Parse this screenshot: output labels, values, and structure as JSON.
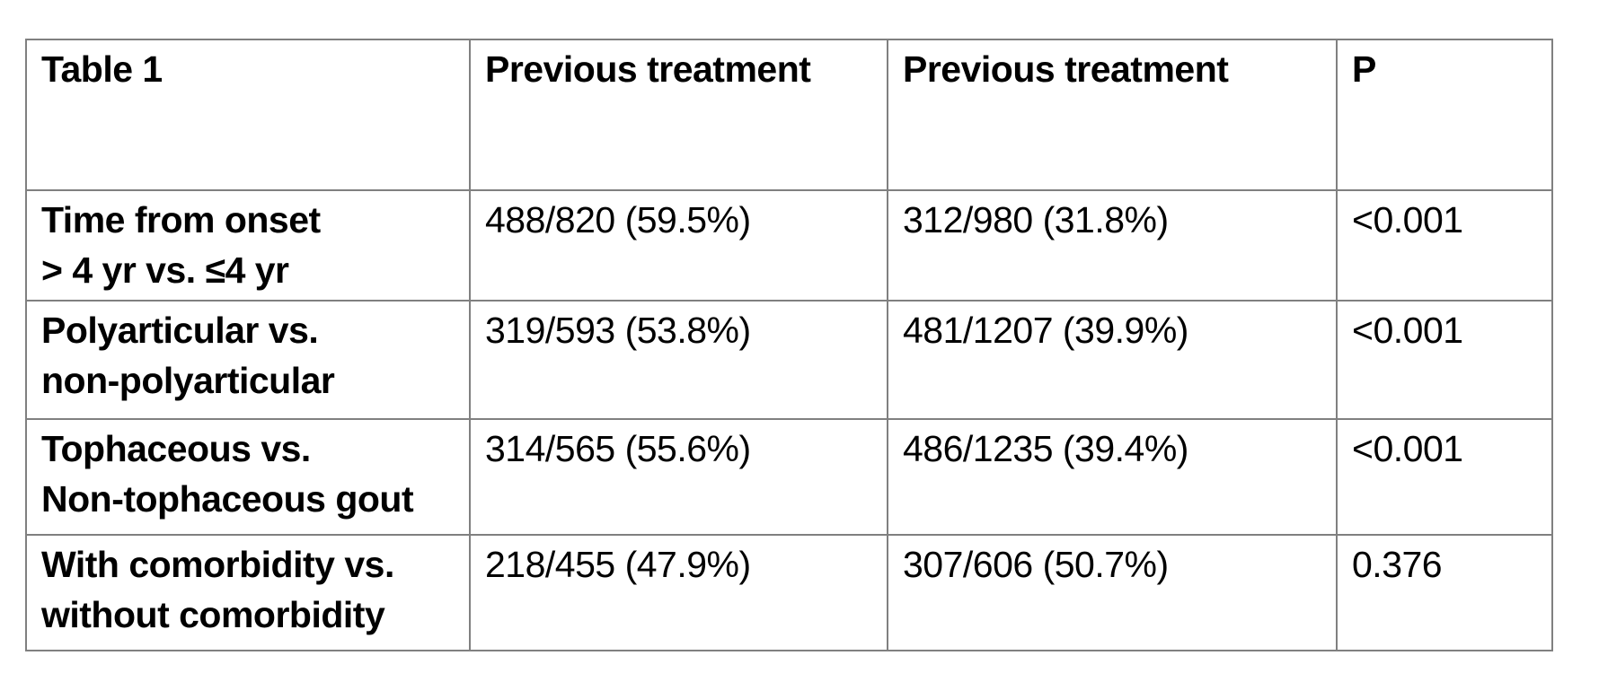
{
  "document": {
    "background_color": "#ffffff",
    "text_color": "#000000",
    "border_color": "#808080"
  },
  "table": {
    "headers": [
      "Table 1",
      "Previous treatment",
      "Previous treatment",
      "P"
    ],
    "rows": [
      {
        "cells": [
          "Time from onset\n> 4 yr vs. ≤4 yr",
          "488/820 (59.5%)",
          "312/980 (31.8%)",
          "<0.001"
        ]
      },
      {
        "cells": [
          "Polyarticular vs.\nnon-polyarticular",
          "319/593 (53.8%)",
          "481/1207 (39.9%)",
          "<0.001"
        ]
      },
      {
        "cells": [
          "Tophaceous vs.\nNon-tophaceous gout",
          "314/565 (55.6%)",
          "486/1235 (39.4%)",
          "<0.001"
        ]
      },
      {
        "cells": [
          "With comorbidity vs.\nwithout comorbidity",
          "218/455 (47.9%)",
          "307/606 (50.7%)",
          "0.376"
        ]
      }
    ]
  }
}
